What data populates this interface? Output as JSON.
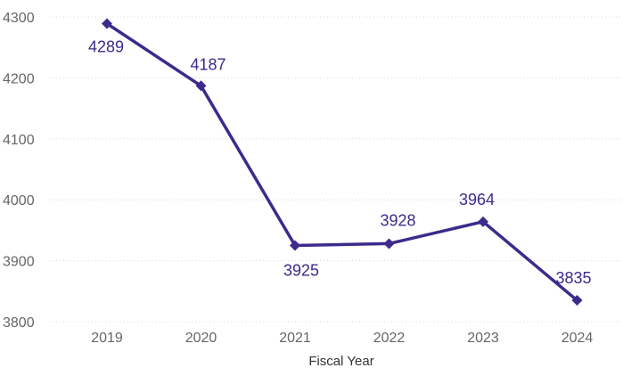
{
  "chart_data": {
    "type": "line",
    "title": "",
    "xlabel": "Fiscal Year",
    "ylabel": "",
    "categories": [
      "2019",
      "2020",
      "2021",
      "2022",
      "2023",
      "2024"
    ],
    "series": [
      {
        "values": [
          4289,
          4187,
          3925,
          3928,
          3964,
          3835
        ],
        "data_labels": [
          "4289",
          "4187",
          "3925",
          "3928",
          "3964",
          "3835"
        ]
      }
    ],
    "ylim": [
      3800,
      4300
    ],
    "yticks": [
      3800,
      3900,
      4000,
      4100,
      4200,
      4300
    ],
    "ytick_labels": [
      "3800",
      "3900",
      "4000",
      "4100",
      "4200",
      "4300"
    ],
    "grid": true,
    "marker": "diamond",
    "colors": {
      "series": "#3d2a8c",
      "data_label": "#3d2a8c",
      "grid": "#d9d9d9",
      "tick_label": "#666666"
    }
  }
}
